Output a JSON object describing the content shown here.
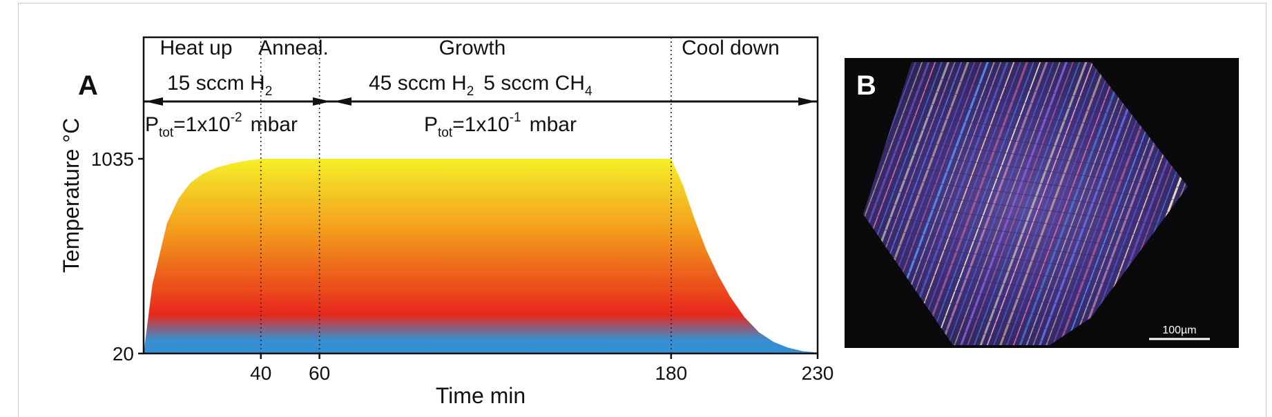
{
  "panel_a": {
    "label": "A",
    "phases": [
      "Heat up",
      "Anneal.",
      "Growth",
      "Cool down"
    ],
    "gas_left": {
      "text": "15 sccm H",
      "sub": "2"
    },
    "gas_right": {
      "t1": "45 sccm H",
      "s1": "2",
      "t2": "5 sccm CH",
      "s2": "4"
    },
    "pressure_left": {
      "p": "P",
      "sub": "tot",
      "mid": "=1x10",
      "sup": "-2",
      "unit": "mbar"
    },
    "pressure_right": {
      "p": "P",
      "sub": "tot",
      "mid": "=1x10",
      "sup": "-1",
      "unit": "mbar"
    }
  },
  "panel_b": {
    "label": "B",
    "scale_bar": "100µm"
  },
  "colors": {
    "blue": "#2f8fd6",
    "red": "#e8281c",
    "orange": "#f39a1c",
    "yellow": "#f6ef28"
  },
  "chart_data": {
    "type": "area",
    "xlabel": "Time min",
    "ylabel": "Temperature °C",
    "x_ticks": [
      40,
      60,
      180,
      230
    ],
    "y_ticks": [
      20,
      1035
    ],
    "xlim": [
      0,
      230
    ],
    "ylim": [
      20,
      1035
    ],
    "phase_boundaries": [
      40,
      60,
      180
    ],
    "series": [
      {
        "x": [
          0,
          3,
          8,
          12,
          16,
          20,
          25,
          30,
          35,
          40,
          60,
          120,
          180,
          184,
          188,
          192,
          196,
          200,
          205,
          210,
          215,
          220,
          225,
          230
        ],
        "y": [
          20,
          380,
          700,
          830,
          910,
          955,
          990,
          1010,
          1025,
          1035,
          1035,
          1035,
          1035,
          900,
          720,
          560,
          430,
          320,
          210,
          130,
          80,
          50,
          32,
          25
        ]
      }
    ]
  }
}
